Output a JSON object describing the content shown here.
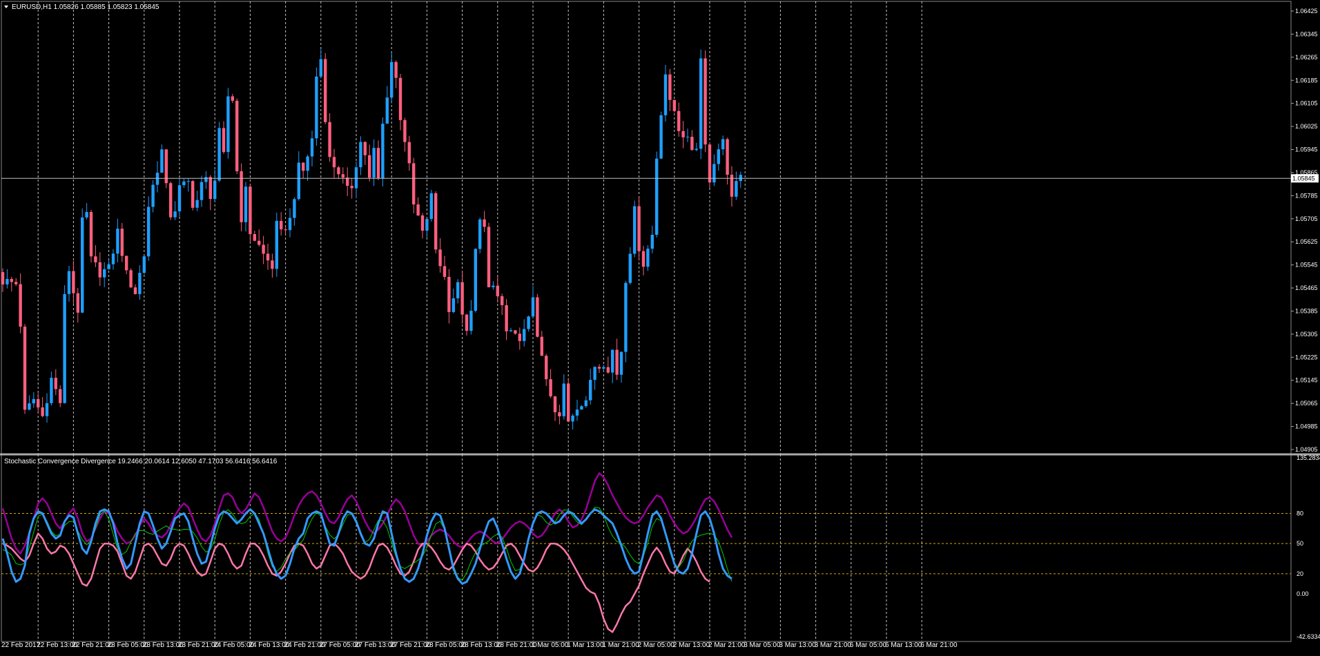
{
  "colors": {
    "background": "#000000",
    "grid": "#c8c8c8",
    "bull_candle": "#1e9fff",
    "bear_candle": "#ff5f7e",
    "text": "#ffffff",
    "level_lines": "#d4aa00",
    "price_line": "#c0c0c0",
    "scd_fast": "#3399ff",
    "scd_slow": "#ff77aa",
    "scd_signal": "#990099",
    "scd_neutral": "#bbbbbb",
    "scd_green": "#00cc00"
  },
  "main_header": {
    "arrow_icon": "dropdown-triangle-icon",
    "text": "EURUSD,H1  1.05826 1.05885 1.05823 1.05845"
  },
  "indicator_header": {
    "text": "Stochastic Convergence Divergence 19.2466 20.0614 12.6050 47.1703 56.6416 56.6416"
  },
  "price_scale": {
    "labels": [
      "1.06425",
      "1.06345",
      "1.06265",
      "1.06185",
      "1.06105",
      "1.06025",
      "1.05945",
      "1.05865",
      "1.05785",
      "1.05705",
      "1.05625",
      "1.05545",
      "1.05465",
      "1.05385",
      "1.05305",
      "1.05225",
      "1.05145",
      "1.05065",
      "1.04985",
      "1.04905"
    ],
    "current": "1.05845"
  },
  "indicator_scale": {
    "labels": [
      "135.2834",
      "80",
      "50",
      "20",
      "0.00",
      "-42.6334"
    ]
  },
  "time_axis": {
    "labels": [
      "22 Feb 2017",
      "22 Feb 13:00",
      "22 Feb 21:00",
      "23 Feb 05:00",
      "23 Feb 13:00",
      "23 Feb 21:00",
      "24 Feb 05:00",
      "24 Feb 13:00",
      "24 Feb 21:00",
      "27 Feb 05:00",
      "27 Feb 13:00",
      "27 Feb 21:00",
      "28 Feb 05:00",
      "28 Feb 13:00",
      "28 Feb 21:00",
      "1 Mar 05:00",
      "1 Mar 13:00",
      "1 Mar 21:00",
      "2 Mar 05:00",
      "2 Mar 13:00",
      "2 Mar 21:00",
      "3 Mar 05:00",
      "3 Mar 13:00",
      "3 Mar 21:00",
      "6 Mar 05:00",
      "6 Mar 13:00",
      "6 Mar 21:00"
    ]
  },
  "chart_data": [
    {
      "type": "candlestick",
      "symbol": "EURUSD",
      "timeframe": "H1",
      "title": "EURUSD,H1",
      "last_ohlc": {
        "open": 1.05826,
        "high": 1.05885,
        "low": 1.05823,
        "close": 1.05845
      },
      "ylim": [
        1.04905,
        1.06425
      ],
      "current_price": 1.05845,
      "grid": true,
      "close_path": [
        [
          0,
          1.0549
        ],
        [
          3,
          1.0548
        ],
        [
          4,
          1.0534
        ],
        [
          5,
          1.0503
        ],
        [
          7,
          1.0508
        ],
        [
          9,
          1.0502
        ],
        [
          11,
          1.0515
        ],
        [
          13,
          1.0507
        ],
        [
          14,
          1.0543
        ],
        [
          15,
          1.0553
        ],
        [
          16,
          1.0545
        ],
        [
          17,
          1.0539
        ],
        [
          18,
          1.0569
        ],
        [
          19,
          1.0572
        ],
        [
          20,
          1.0556
        ],
        [
          22,
          1.0552
        ],
        [
          24,
          1.0553
        ],
        [
          26,
          1.0566
        ],
        [
          27,
          1.0559
        ],
        [
          28,
          1.0551
        ],
        [
          30,
          1.0545
        ],
        [
          32,
          1.0558
        ],
        [
          33,
          1.0575
        ],
        [
          34,
          1.0582
        ],
        [
          36,
          1.0594
        ],
        [
          37,
          1.0581
        ],
        [
          38,
          1.0572
        ],
        [
          39,
          1.0574
        ],
        [
          40,
          1.0581
        ],
        [
          42,
          1.0583
        ],
        [
          43,
          1.0576
        ],
        [
          44,
          1.0577
        ],
        [
          45,
          1.0582
        ],
        [
          46,
          1.0584
        ],
        [
          47,
          1.0579
        ],
        [
          48,
          1.0584
        ],
        [
          49,
          1.06
        ],
        [
          50,
          1.0592
        ],
        [
          51,
          1.0613
        ],
        [
          52,
          1.0612
        ],
        [
          53,
          1.0587
        ],
        [
          54,
          1.0571
        ],
        [
          55,
          1.058
        ],
        [
          56,
          1.0566
        ],
        [
          58,
          1.0561
        ],
        [
          59,
          1.0558
        ],
        [
          61,
          1.0554
        ],
        [
          62,
          1.0568
        ],
        [
          63,
          1.0565
        ],
        [
          64,
          1.0568
        ],
        [
          65,
          1.057
        ],
        [
          67,
          1.0588
        ],
        [
          68,
          1.0587
        ],
        [
          70,
          1.0598
        ],
        [
          71,
          1.062
        ],
        [
          72,
          1.0626
        ],
        [
          73,
          1.0606
        ],
        [
          74,
          1.0591
        ],
        [
          75,
          1.0589
        ],
        [
          76,
          1.0587
        ],
        [
          78,
          1.058
        ],
        [
          79,
          1.0582
        ],
        [
          80,
          1.059
        ],
        [
          81,
          1.0597
        ],
        [
          82,
          1.0593
        ],
        [
          83,
          1.0584
        ],
        [
          84,
          1.0594
        ],
        [
          85,
          1.0584
        ],
        [
          86,
          1.0603
        ],
        [
          87,
          1.0614
        ],
        [
          88,
          1.0625
        ],
        [
          89,
          1.0619
        ],
        [
          90,
          1.0606
        ],
        [
          91,
          1.0598
        ],
        [
          92,
          1.0588
        ],
        [
          93,
          1.0575
        ],
        [
          94,
          1.0571
        ],
        [
          95,
          1.0565
        ],
        [
          96,
          1.0571
        ],
        [
          97,
          1.0578
        ],
        [
          98,
          1.056
        ],
        [
          99,
          1.0555
        ],
        [
          100,
          1.055
        ],
        [
          101,
          1.054
        ],
        [
          103,
          1.0547
        ],
        [
          105,
          1.053
        ],
        [
          106,
          1.0538
        ],
        [
          107,
          1.0559
        ],
        [
          108,
          1.0572
        ],
        [
          109,
          1.0567
        ],
        [
          110,
          1.0545
        ],
        [
          111,
          1.0547
        ],
        [
          113,
          1.054
        ],
        [
          114,
          1.0531
        ],
        [
          116,
          1.0529
        ],
        [
          118,
          1.0531
        ],
        [
          119,
          1.0535
        ],
        [
          120,
          1.0544
        ],
        [
          121,
          1.0531
        ],
        [
          122,
          1.0521
        ],
        [
          124,
          1.0508
        ],
        [
          125,
          1.0503
        ],
        [
          126,
          1.0501
        ],
        [
          127,
          1.0513
        ],
        [
          128,
          1.0501
        ],
        [
          130,
          1.0506
        ],
        [
          132,
          1.0506
        ],
        [
          133,
          1.0515
        ],
        [
          134,
          1.052
        ],
        [
          136,
          1.0521
        ],
        [
          137,
          1.0517
        ],
        [
          138,
          1.0525
        ],
        [
          139,
          1.0517
        ],
        [
          140,
          1.0525
        ],
        [
          141,
          1.055
        ],
        [
          142,
          1.056
        ],
        [
          143,
          1.0573
        ],
        [
          144,
          1.0561
        ],
        [
          145,
          1.0555
        ],
        [
          147,
          1.0565
        ],
        [
          148,
          1.0592
        ],
        [
          149,
          1.0608
        ],
        [
          150,
          1.0621
        ],
        [
          151,
          1.061
        ],
        [
          152,
          1.0608
        ],
        [
          153,
          1.0602
        ],
        [
          154,
          1.06
        ],
        [
          155,
          1.0597
        ],
        [
          156,
          1.0595
        ],
        [
          157,
          1.0596
        ],
        [
          158,
          1.0626
        ],
        [
          159,
          1.0598
        ],
        [
          160,
          1.0583
        ],
        [
          161,
          1.059
        ],
        [
          162,
          1.0596
        ],
        [
          163,
          1.0597
        ],
        [
          164,
          1.0587
        ],
        [
          165,
          1.0578
        ],
        [
          166,
          1.0582
        ],
        [
          167,
          1.0584
        ]
      ],
      "time_labels_at_bar": [
        0,
        8,
        16,
        24,
        32,
        40,
        48,
        56,
        64,
        72,
        80,
        88,
        96,
        104,
        112,
        120,
        128,
        136,
        144,
        152,
        160,
        168,
        176,
        184,
        192,
        200,
        208
      ]
    },
    {
      "type": "line",
      "title": "Stochastic Convergence Divergence",
      "header_values": [
        19.2466,
        20.0614,
        12.605,
        47.1703,
        56.6416,
        56.6416
      ],
      "ylim": [
        -42.6334,
        135.2834
      ],
      "levels": [
        80,
        50,
        20
      ],
      "series": [
        {
          "values": [
            55,
            40,
            22,
            12,
            15,
            28,
            60,
            75,
            82,
            80,
            70,
            60,
            55,
            58,
            72,
            78,
            76,
            60,
            45,
            40,
            52,
            70,
            82,
            84,
            82,
            70,
            50,
            35,
            25,
            30,
            50,
            70,
            82,
            80,
            68,
            55,
            45,
            50,
            62,
            75,
            78,
            80,
            72,
            55,
            40,
            30,
            32,
            48,
            65,
            78,
            82,
            80,
            75,
            70,
            74,
            80,
            84,
            80,
            70,
            60,
            45,
            30,
            20,
            15,
            18,
            30,
            45,
            55,
            60,
            75,
            80,
            82,
            80,
            65,
            50,
            48,
            60,
            75,
            82,
            80,
            72,
            60,
            50,
            48,
            55,
            70,
            82,
            80,
            60,
            40,
            25,
            15,
            12,
            15,
            25,
            40,
            58,
            72,
            80,
            78,
            65,
            45,
            25,
            15,
            10,
            12,
            20,
            30,
            45,
            60,
            72,
            75,
            65,
            50,
            35,
            22,
            15,
            20,
            35,
            55,
            70,
            80,
            82,
            80,
            75,
            70,
            72,
            78,
            82,
            80,
            75,
            70,
            74,
            80,
            84,
            82,
            78,
            74,
            70,
            60,
            48,
            35,
            25,
            20,
            22,
            40,
            60,
            78,
            82,
            75,
            60,
            45,
            30,
            22,
            20,
            25,
            40,
            60,
            78,
            82,
            75,
            60,
            40,
            25,
            18,
            15
          ]
        },
        {
          "values": [
            50,
            48,
            45,
            40,
            35,
            32,
            38,
            50,
            60,
            55,
            45,
            40,
            42,
            48,
            46,
            40,
            30,
            20,
            10,
            8,
            15,
            30,
            45,
            50,
            50,
            48,
            42,
            30,
            18,
            15,
            22,
            35,
            48,
            50,
            46,
            38,
            30,
            28,
            35,
            46,
            50,
            48,
            40,
            30,
            22,
            18,
            20,
            32,
            45,
            50,
            48,
            40,
            30,
            25,
            28,
            40,
            50,
            50,
            46,
            38,
            28,
            20,
            18,
            22,
            30,
            40,
            48,
            50,
            48,
            40,
            30,
            25,
            28,
            38,
            48,
            50,
            46,
            40,
            30,
            22,
            18,
            15,
            18,
            26,
            38,
            48,
            50,
            46,
            38,
            28,
            20,
            18,
            22,
            32,
            44,
            50,
            50,
            46,
            40,
            32,
            26,
            24,
            28,
            36,
            44,
            50,
            48,
            42,
            34,
            28,
            24,
            26,
            32,
            40,
            48,
            50,
            46,
            38,
            30,
            24,
            22,
            26,
            34,
            44,
            50,
            50,
            48,
            44,
            38,
            30,
            22,
            14,
            6,
            2,
            0,
            -10,
            -25,
            -35,
            -38,
            -30,
            -20,
            -12,
            -8,
            0,
            8,
            20,
            30,
            40,
            46,
            40,
            30,
            22,
            20,
            28,
            38,
            45,
            40,
            32,
            22,
            15,
            12
          ]
        },
        {
          "values": [
            85,
            70,
            55,
            45,
            40,
            48,
            60,
            75,
            90,
            95,
            90,
            80,
            70,
            65,
            72,
            80,
            85,
            75,
            60,
            52,
            55,
            65,
            75,
            82,
            80,
            72,
            62,
            55,
            50,
            52,
            58,
            68,
            75,
            70,
            62,
            58,
            56,
            60,
            68,
            78,
            85,
            90,
            86,
            75,
            64,
            55,
            52,
            58,
            70,
            85,
            98,
            100,
            96,
            86,
            80,
            84,
            92,
            100,
            96,
            86,
            74,
            62,
            55,
            52,
            56,
            66,
            78,
            88,
            95,
            100,
            102,
            98,
            90,
            80,
            72,
            70,
            76,
            86,
            94,
            98,
            92,
            82,
            72,
            64,
            60,
            64,
            70,
            78,
            88,
            94,
            90,
            82,
            70,
            58,
            50,
            48,
            52,
            58,
            62,
            64,
            62,
            58,
            52,
            48,
            46,
            50,
            56,
            60,
            62,
            60,
            56,
            52,
            50,
            54,
            60,
            66,
            70,
            72,
            70,
            66,
            60,
            56,
            58,
            64,
            72,
            80,
            84,
            80,
            72,
            66,
            68,
            74,
            84,
            98,
            112,
            120,
            116,
            108,
            98,
            90,
            82,
            76,
            72,
            70,
            72,
            78,
            86,
            92,
            98,
            96,
            88,
            78,
            70,
            64,
            60,
            62,
            68,
            76,
            86,
            94,
            96,
            92,
            84,
            74,
            64,
            56
          ]
        }
      ]
    }
  ]
}
